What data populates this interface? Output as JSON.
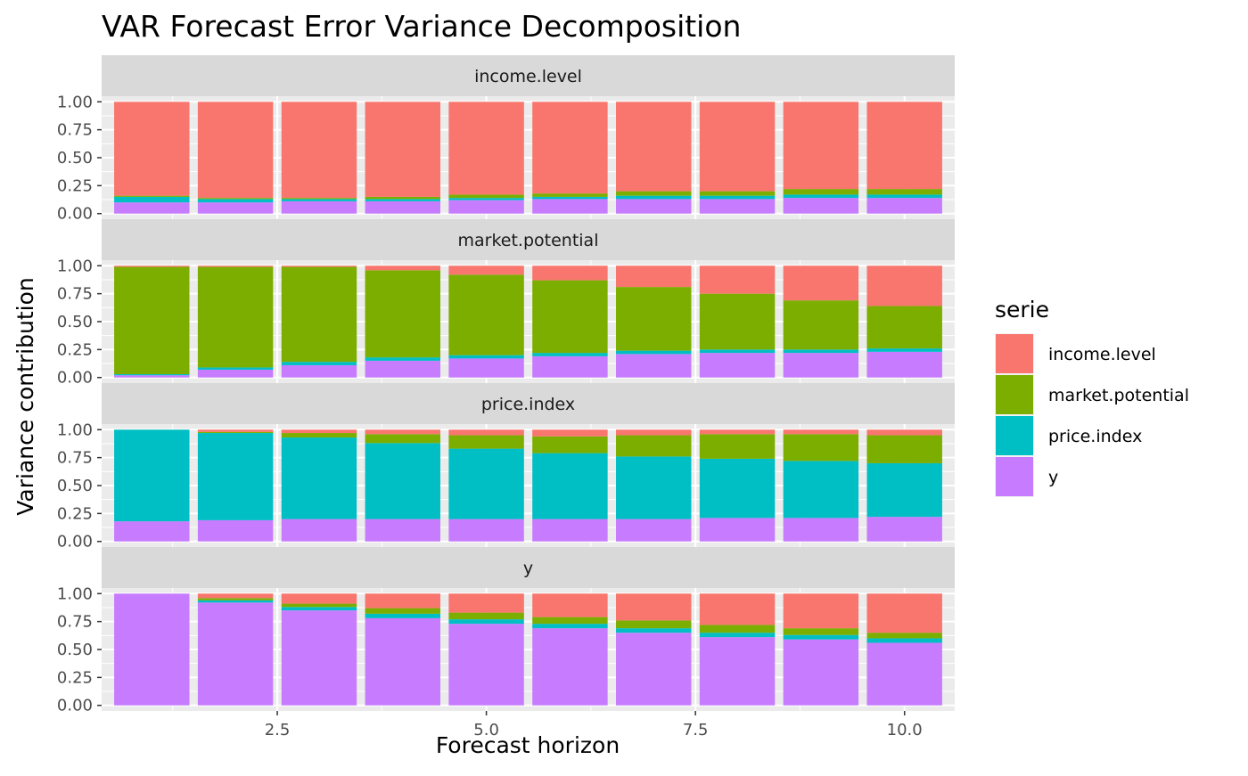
{
  "chart_data": {
    "type": "bar",
    "stacked": true,
    "faceted": true,
    "title": "VAR Forecast Error Variance Decomposition",
    "xlabel": "Forecast horizon",
    "ylabel": "Variance contribution",
    "x": [
      1,
      2,
      3,
      4,
      5,
      6,
      7,
      8,
      9,
      10
    ],
    "xlim": [
      0.4,
      10.6
    ],
    "ylim": [
      0,
      1
    ],
    "x_ticks": [
      2.5,
      5.0,
      7.5,
      10.0
    ],
    "x_tick_labels": [
      "2.5",
      "5.0",
      "7.5",
      "10.0"
    ],
    "y_ticks": [
      0,
      0.25,
      0.5,
      0.75,
      1.0
    ],
    "y_tick_labels": [
      "0.00",
      "0.25",
      "0.50",
      "0.75",
      "1.00"
    ],
    "stack_order_bottom_to_top": [
      "y",
      "price.index",
      "market.potential",
      "income.level"
    ],
    "legend": {
      "title": "serie",
      "position": "right",
      "entries": [
        {
          "name": "income.level",
          "color": "#F8766D"
        },
        {
          "name": "market.potential",
          "color": "#7CAE00"
        },
        {
          "name": "price.index",
          "color": "#00BFC4"
        },
        {
          "name": "y",
          "color": "#C77CFF"
        }
      ]
    },
    "panels": [
      {
        "label": "income.level",
        "series": [
          {
            "name": "y",
            "values": [
              0.1,
              0.1,
              0.11,
              0.11,
              0.12,
              0.13,
              0.13,
              0.13,
              0.14,
              0.14
            ]
          },
          {
            "name": "price.index",
            "values": [
              0.05,
              0.03,
              0.02,
              0.02,
              0.02,
              0.02,
              0.03,
              0.03,
              0.03,
              0.03
            ]
          },
          {
            "name": "market.potential",
            "values": [
              0.01,
              0.01,
              0.01,
              0.02,
              0.03,
              0.03,
              0.04,
              0.04,
              0.05,
              0.05
            ]
          },
          {
            "name": "income.level",
            "values": [
              0.84,
              0.86,
              0.86,
              0.85,
              0.83,
              0.82,
              0.8,
              0.8,
              0.78,
              0.78
            ]
          }
        ]
      },
      {
        "label": "market.potential",
        "series": [
          {
            "name": "y",
            "values": [
              0.02,
              0.07,
              0.11,
              0.15,
              0.17,
              0.19,
              0.21,
              0.22,
              0.22,
              0.23
            ]
          },
          {
            "name": "price.index",
            "values": [
              0.01,
              0.02,
              0.03,
              0.03,
              0.03,
              0.03,
              0.03,
              0.03,
              0.03,
              0.03
            ]
          },
          {
            "name": "market.potential",
            "values": [
              0.96,
              0.9,
              0.85,
              0.78,
              0.72,
              0.65,
              0.57,
              0.5,
              0.44,
              0.38
            ]
          },
          {
            "name": "income.level",
            "values": [
              0.01,
              0.01,
              0.01,
              0.04,
              0.08,
              0.13,
              0.19,
              0.25,
              0.31,
              0.36
            ]
          }
        ]
      },
      {
        "label": "price.index",
        "series": [
          {
            "name": "y",
            "values": [
              0.18,
              0.19,
              0.2,
              0.2,
              0.2,
              0.2,
              0.2,
              0.21,
              0.21,
              0.22
            ]
          },
          {
            "name": "price.index",
            "values": [
              0.82,
              0.78,
              0.73,
              0.68,
              0.63,
              0.59,
              0.56,
              0.53,
              0.51,
              0.48
            ]
          },
          {
            "name": "market.potential",
            "values": [
              0.0,
              0.01,
              0.04,
              0.08,
              0.12,
              0.15,
              0.19,
              0.22,
              0.24,
              0.25
            ]
          },
          {
            "name": "income.level",
            "values": [
              0.0,
              0.02,
              0.03,
              0.04,
              0.05,
              0.06,
              0.05,
              0.04,
              0.04,
              0.05
            ]
          }
        ]
      },
      {
        "label": "y",
        "series": [
          {
            "name": "y",
            "values": [
              1.0,
              0.92,
              0.85,
              0.78,
              0.73,
              0.69,
              0.65,
              0.61,
              0.59,
              0.56
            ]
          },
          {
            "name": "price.index",
            "values": [
              0.0,
              0.02,
              0.03,
              0.04,
              0.04,
              0.04,
              0.04,
              0.04,
              0.04,
              0.04
            ]
          },
          {
            "name": "market.potential",
            "values": [
              0.0,
              0.02,
              0.03,
              0.05,
              0.06,
              0.06,
              0.07,
              0.07,
              0.06,
              0.05
            ]
          },
          {
            "name": "income.level",
            "values": [
              0.0,
              0.04,
              0.09,
              0.13,
              0.17,
              0.21,
              0.24,
              0.28,
              0.31,
              0.35
            ]
          }
        ]
      }
    ]
  }
}
